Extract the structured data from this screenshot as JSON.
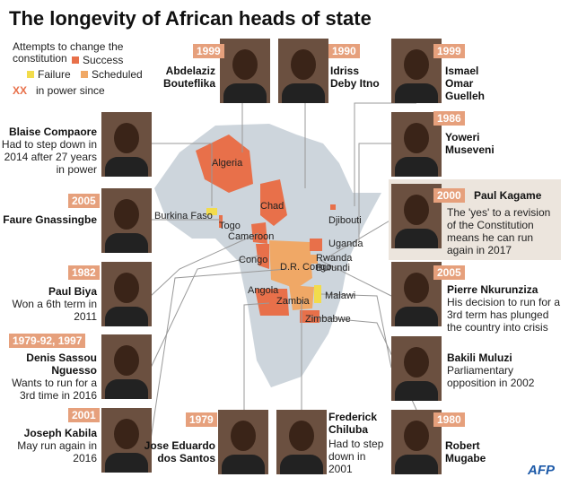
{
  "title": "The longevity of African heads of state",
  "legend": {
    "heading": "Attempts to change the constitution",
    "items": [
      {
        "label": "Success",
        "color": "#e8704a"
      },
      {
        "label": "Failure",
        "color": "#f2dc4c"
      },
      {
        "label": "Scheduled",
        "color": "#f0a866"
      }
    ],
    "marker": "XX",
    "marker_text": "in power since"
  },
  "leaders": [
    {
      "since": "1999",
      "name": "Abdelaziz Bouteflika"
    },
    {
      "since": "1990",
      "name": "Idriss Deby Itno"
    },
    {
      "since": "1999",
      "name": "Ismael Omar Guelleh"
    },
    {
      "name": "Blaise Compaore",
      "note": "Had to step down in 2014 after 27 years in power"
    },
    {
      "since": "1986",
      "name": "Yoweri Museveni"
    },
    {
      "since": "2005",
      "name": "Faure Gnassingbe"
    },
    {
      "since": "2000",
      "name": "Paul Kagame",
      "note": "The 'yes' to a revision of the Constitution means he can run again in 2017"
    },
    {
      "since": "1982",
      "name": "Paul Biya",
      "note": "Won a 6th term in 2011"
    },
    {
      "since": "2005",
      "name": "Pierre Nkurunziza",
      "note": "His decision to run for a 3rd term has plunged the country into crisis"
    },
    {
      "since": "1979-92, 1997",
      "name": "Denis Sassou Nguesso",
      "note": "Wants to run for a 3rd time in 2016"
    },
    {
      "name": "Bakili Muluzi",
      "note": "Parliamentary opposition in 2002"
    },
    {
      "since": "2001",
      "name": "Joseph Kabila",
      "note": "May run again in 2016"
    },
    {
      "since": "1979",
      "name": "Jose Eduardo dos Santos"
    },
    {
      "name": "Frederick Chiluba",
      "note": "Had to step down in 2001"
    },
    {
      "since": "1980",
      "name": "Robert Mugabe"
    }
  ],
  "countries": [
    "Algeria",
    "Burkina Faso",
    "Togo",
    "Chad",
    "Cameroon",
    "Djibouti",
    "Uganda",
    "Rwanda",
    "Burundi",
    "Congo",
    "D.R. Congo",
    "Angola",
    "Zambia",
    "Malawi",
    "Zimbabwe"
  ],
  "credit": "AFP"
}
